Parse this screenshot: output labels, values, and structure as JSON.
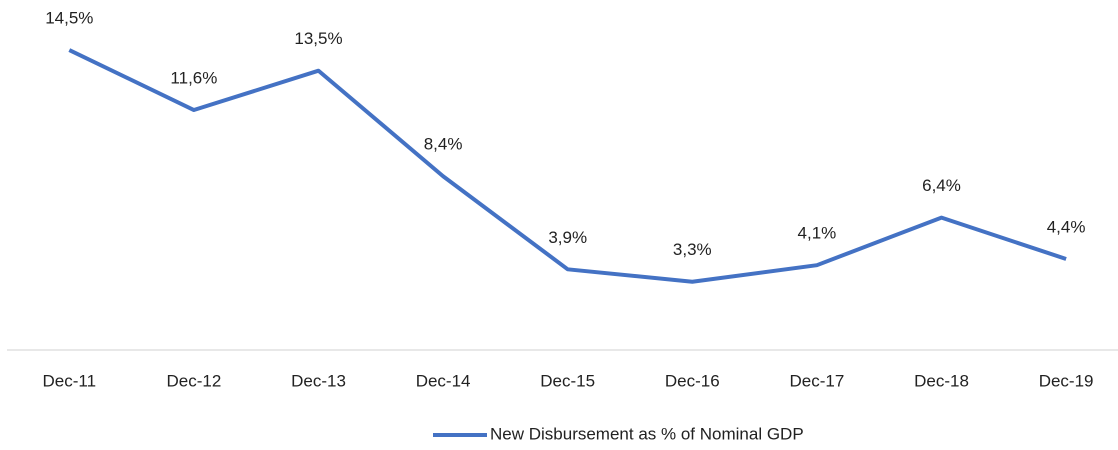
{
  "chart_data": {
    "type": "line",
    "categories": [
      "Dec-11",
      "Dec-12",
      "Dec-13",
      "Dec-14",
      "Dec-15",
      "Dec-16",
      "Dec-17",
      "Dec-18",
      "Dec-19"
    ],
    "series": [
      {
        "name": "New Disbursement as % of Nominal GDP",
        "color": "#4472c4",
        "values": [
          14.5,
          11.6,
          13.5,
          8.4,
          3.9,
          3.3,
          4.1,
          6.4,
          4.4
        ],
        "value_labels": [
          "14,5%",
          "11,6%",
          "13,5%",
          "8,4%",
          "3,9%",
          "3,3%",
          "4,1%",
          "6,4%",
          "4,4%"
        ]
      }
    ],
    "ylim": [
      0,
      16
    ],
    "legend": "bottom"
  }
}
